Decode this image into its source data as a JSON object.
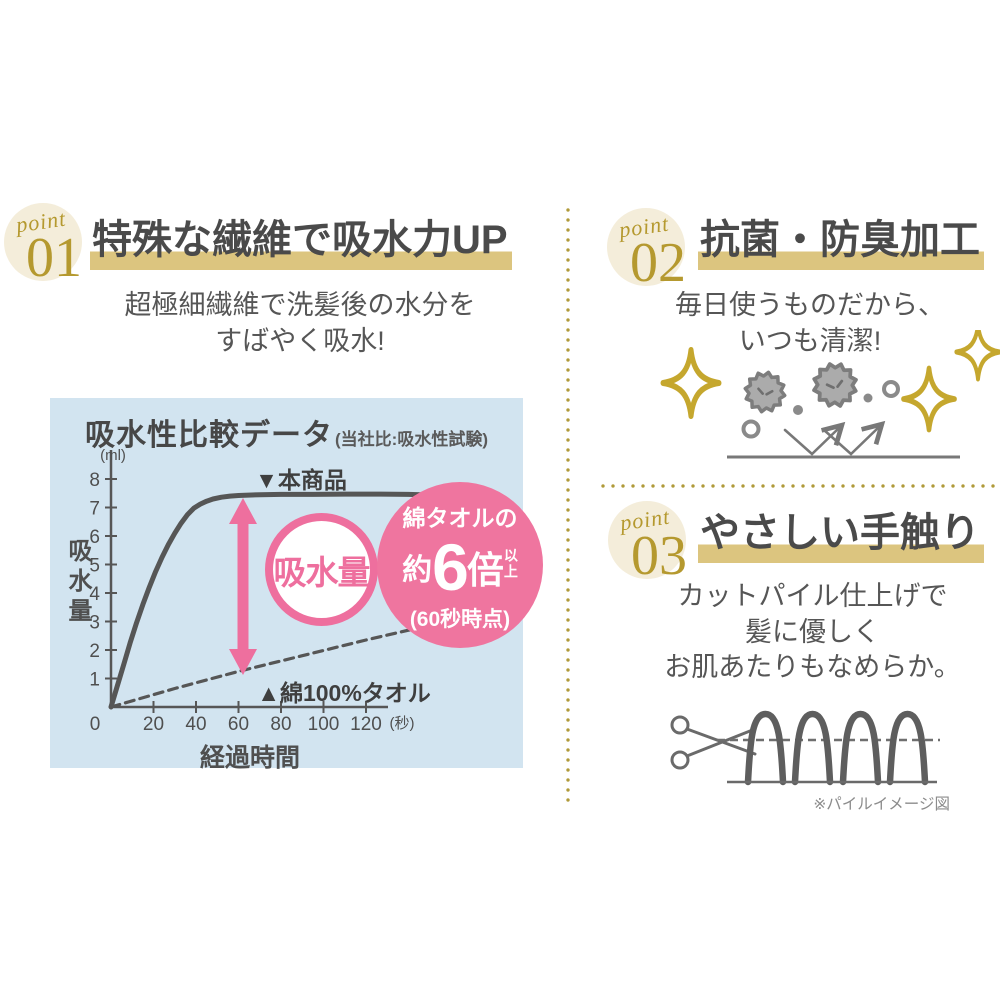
{
  "colors": {
    "accent_gold": "#b5992f",
    "sparkle_gold": "#c5a72e",
    "highlight_tan": "#dcc57f",
    "badge_beige": "#f4edda",
    "accent_pink": "#ee6f9e",
    "pink_circle_bg": "#ef759f",
    "chart_bg": "#d2e4f0",
    "text_dark": "#4a4a4a",
    "text_body": "#565656",
    "icon_gray": "#7a7a7a"
  },
  "points": [
    {
      "label": "point",
      "number": "01",
      "title": "特殊な繊維で吸水力UP",
      "body": [
        "超極細繊維で洗髪後の水分を",
        "すばやく吸水!"
      ]
    },
    {
      "label": "point",
      "number": "02",
      "title": "抗菌・防臭加工",
      "body": [
        "毎日使うものだから、",
        "いつも清潔!"
      ]
    },
    {
      "label": "point",
      "number": "03",
      "title": "やさしい手触り",
      "body": [
        "カットパイル仕上げで",
        "髪に優しく",
        "お肌あたりもなめらか。"
      ]
    }
  ],
  "chart_data": {
    "type": "line",
    "title": "吸水性比較データ",
    "title_note": "(当社比:吸水性試験)",
    "ylabel": "吸水量",
    "xlabel": "経過時間",
    "y_unit": "(ml)",
    "x_unit": "(秒)",
    "ylim": [
      0,
      8
    ],
    "xlim": [
      0,
      130
    ],
    "grid": false,
    "y_ticks": [
      8,
      7,
      6,
      5,
      4,
      3,
      2,
      1
    ],
    "x_ticks": [
      0,
      20,
      40,
      60,
      80,
      100,
      120
    ],
    "series": [
      {
        "name": "▼本商品",
        "line_style": "solid",
        "points": [
          [
            0,
            0
          ],
          [
            3,
            0.75
          ],
          [
            6,
            1.5
          ],
          [
            9,
            2.25
          ],
          [
            12,
            2.95
          ],
          [
            15,
            3.6
          ],
          [
            18,
            4.2
          ],
          [
            21,
            4.75
          ],
          [
            24,
            5.25
          ],
          [
            27,
            5.7
          ],
          [
            30,
            6.1
          ],
          [
            33,
            6.45
          ],
          [
            36,
            6.75
          ],
          [
            39,
            6.98
          ],
          [
            42,
            7.12
          ],
          [
            45,
            7.22
          ],
          [
            48,
            7.3
          ],
          [
            52,
            7.36
          ],
          [
            56,
            7.4
          ],
          [
            60,
            7.42
          ],
          [
            70,
            7.45
          ],
          [
            80,
            7.46
          ],
          [
            95,
            7.46
          ],
          [
            110,
            7.47
          ],
          [
            125,
            7.47
          ],
          [
            140,
            7.46
          ],
          [
            150,
            7.44
          ]
        ]
      },
      {
        "name": "▲綿100%タオル",
        "line_style": "dashed",
        "points": [
          [
            0,
            0
          ],
          [
            30,
            0.65
          ],
          [
            60,
            1.25
          ],
          [
            90,
            1.8
          ],
          [
            120,
            2.35
          ],
          [
            146,
            2.8
          ]
        ]
      }
    ],
    "annotations": {
      "gap_label": "吸水量",
      "ratio_prefix": "綿タオルの",
      "ratio_about": "約",
      "ratio_value": "6",
      "ratio_unit": "倍",
      "ratio_suffix": "以上",
      "ratio_note": "(60秒時点)"
    }
  },
  "pile_caption": "※パイルイメージ図"
}
